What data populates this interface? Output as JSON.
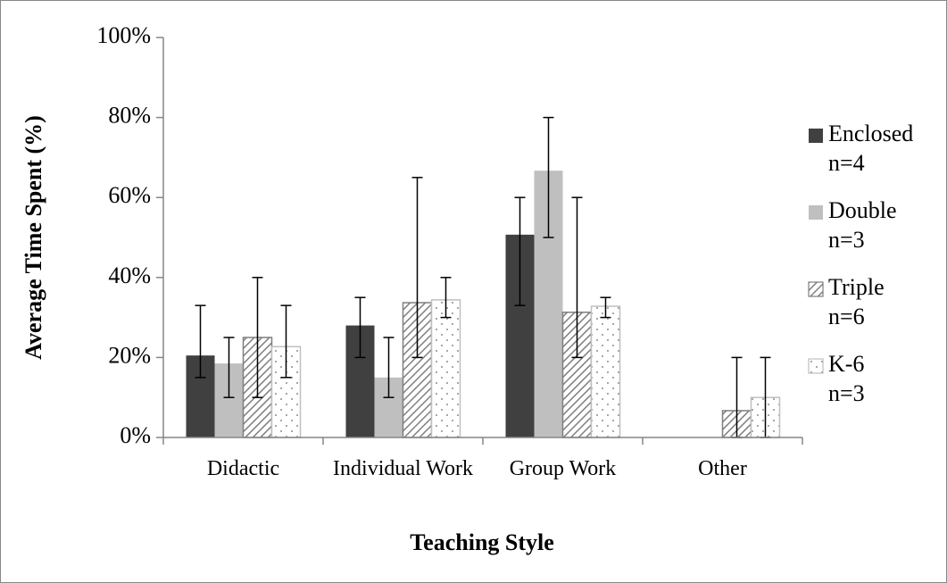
{
  "chart_data": {
    "type": "bar",
    "xlabel": "Teaching Style",
    "ylabel": "Average Time Spent (%)",
    "categories": [
      "Didactic",
      "Individual Work",
      "Group Work",
      "Other"
    ],
    "ylim": [
      0,
      100
    ],
    "yticks": [
      {
        "value": 0,
        "label": "0%"
      },
      {
        "value": 20,
        "label": "20%"
      },
      {
        "value": 40,
        "label": "40%"
      },
      {
        "value": 60,
        "label": "60%"
      },
      {
        "value": 80,
        "label": "80%"
      },
      {
        "value": 100,
        "label": "100%"
      }
    ],
    "legend": "right",
    "series": [
      {
        "name": "Enclosed n=4",
        "color": "#404040",
        "pattern": "solid",
        "values": [
          20.5,
          28,
          50.7,
          0
        ],
        "lower": [
          15,
          20,
          33,
          null
        ],
        "upper": [
          33,
          35,
          60,
          null
        ]
      },
      {
        "name": "Double n=3",
        "color": "#bfbfbf",
        "pattern": "solid",
        "values": [
          18.5,
          15,
          66.7,
          0
        ],
        "lower": [
          10,
          10,
          50,
          null
        ],
        "upper": [
          25,
          25,
          80,
          null
        ]
      },
      {
        "name": "Triple n=6",
        "color": "#7f7f7f",
        "pattern": "hatch",
        "values": [
          25,
          33.7,
          31.3,
          6.7
        ],
        "lower": [
          10,
          20,
          20,
          0
        ],
        "upper": [
          40,
          65,
          60,
          20
        ]
      },
      {
        "name": "K-6 n=3",
        "color": "#bfbfbf",
        "pattern": "dots",
        "values": [
          22.7,
          34.4,
          32.8,
          10
        ],
        "lower": [
          15,
          30,
          30,
          0
        ],
        "upper": [
          33,
          40,
          35,
          20
        ]
      }
    ]
  }
}
